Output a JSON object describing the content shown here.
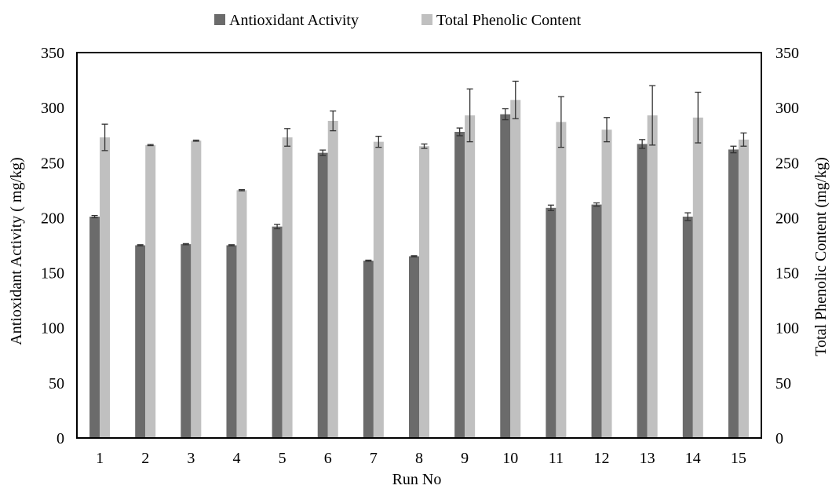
{
  "chart_data": {
    "type": "bar",
    "xlabel": "Run No",
    "ylabel_left": "Antioxidant Activity ( mg/kg)",
    "ylabel_right": "Total Phenolic Content (mg/kg)",
    "categories": [
      "1",
      "2",
      "3",
      "4",
      "5",
      "6",
      "7",
      "8",
      "9",
      "10",
      "11",
      "12",
      "13",
      "14",
      "15"
    ],
    "ylim": [
      0,
      350
    ],
    "yticks": [
      0,
      50,
      100,
      150,
      200,
      250,
      300,
      350
    ],
    "legend_position": "top",
    "series": [
      {
        "name": "Antioxidant Activity",
        "color": "#6b6b6b",
        "values": [
          201,
          175,
          176,
          175,
          192,
          259,
          161,
          165,
          278,
          294,
          209,
          212,
          267,
          201,
          262
        ],
        "errors": [
          1,
          0.5,
          0.5,
          0.5,
          2,
          2.5,
          0.5,
          0.5,
          3.5,
          5,
          2.5,
          1.5,
          4,
          3.5,
          3
        ]
      },
      {
        "name": "Total Phenolic Content",
        "color": "#c0c0c0",
        "values": [
          273,
          266,
          270,
          225,
          273,
          288,
          269,
          265,
          293,
          307,
          287,
          280,
          293,
          291,
          271
        ],
        "errors": [
          12,
          0.5,
          0.5,
          0.5,
          8,
          9,
          5,
          2,
          24,
          17,
          23,
          11,
          27,
          23,
          6
        ]
      }
    ]
  }
}
